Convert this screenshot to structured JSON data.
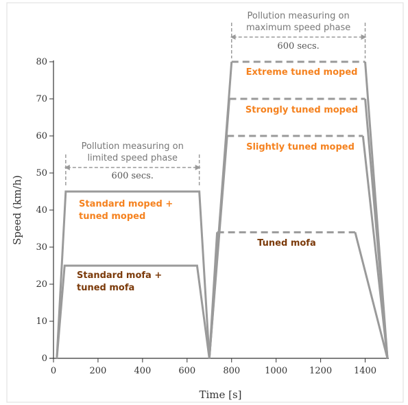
{
  "chart_data": {
    "type": "line",
    "xlabel": "Time [s]",
    "ylabel": "Speed (km/h)",
    "xlim": [
      0,
      1500
    ],
    "ylim": [
      0,
      80
    ],
    "xticks": [
      0,
      200,
      400,
      600,
      800,
      1000,
      1200,
      1400
    ],
    "yticks": [
      0,
      10,
      20,
      30,
      40,
      50,
      60,
      70,
      80
    ],
    "grid": false,
    "colors": {
      "line": "#9a9a9a",
      "annotation": "#9a9a9a",
      "orange": "#f5821f",
      "brown": "#7b3a0a",
      "axis": "#333333"
    },
    "series": [
      {
        "name": "Standard moped + tuned moped",
        "label_lines": [
          "Standard moped +",
          "tuned moped"
        ],
        "label_color": "orange",
        "style": "solid",
        "x": [
          15,
          55,
          655,
          700
        ],
        "y": [
          0,
          45,
          45,
          0
        ]
      },
      {
        "name": "Standard mofa + tuned mofa",
        "label_lines": [
          "Standard mofa +",
          "tuned mofa"
        ],
        "label_color": "brown",
        "style": "solid",
        "x": [
          15,
          50,
          645,
          700
        ],
        "y": [
          0,
          25,
          25,
          0
        ]
      },
      {
        "name": "Extreme tuned moped",
        "label_lines": [
          "Extreme tuned moped"
        ],
        "label_color": "orange",
        "style": "dashed-top",
        "x": [
          700,
          800,
          1400,
          1500
        ],
        "y": [
          0,
          80,
          80,
          0
        ]
      },
      {
        "name": "Strongly tuned moped",
        "label_lines": [
          "Strongly tuned moped"
        ],
        "label_color": "orange",
        "style": "dashed-top",
        "x": [
          700,
          790,
          1400,
          1500
        ],
        "y": [
          0,
          70,
          70,
          0
        ]
      },
      {
        "name": "Slightly tuned moped",
        "label_lines": [
          "Slightly tuned moped"
        ],
        "label_color": "orange",
        "style": "dashed-top",
        "x": [
          700,
          780,
          1390,
          1500
        ],
        "y": [
          0,
          60,
          60,
          0
        ]
      },
      {
        "name": "Tuned mofa",
        "label_lines": [
          "Tuned mofa"
        ],
        "label_color": "brown",
        "style": "dashed-top",
        "x": [
          700,
          735,
          1355,
          1500
        ],
        "y": [
          0,
          34,
          34,
          0
        ]
      }
    ],
    "annotations": [
      {
        "title_lines": [
          "Pollution measuring on",
          "limited speed phase"
        ],
        "duration": "600 secs.",
        "x_start": 55,
        "x_end": 655
      },
      {
        "title_lines": [
          "Pollution measuring on",
          "maximum speed phase"
        ],
        "duration": "600 secs.",
        "x_start": 800,
        "x_end": 1400
      }
    ]
  }
}
